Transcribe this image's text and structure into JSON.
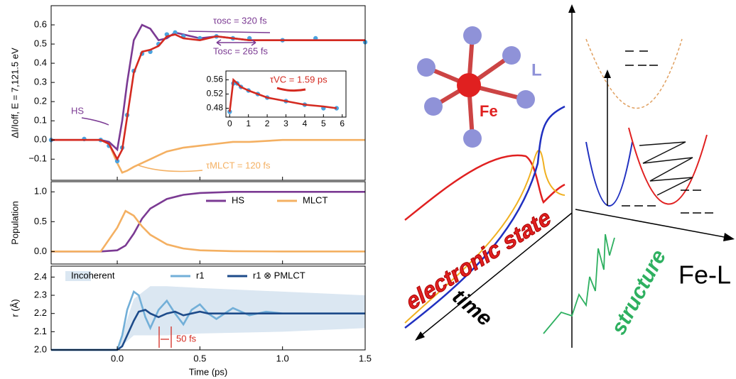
{
  "chart_data": [
    {
      "type": "line",
      "ylabel": "ΔI/Ioff, E = 7,121.5 eV",
      "xlim": [
        -0.4,
        1.5
      ],
      "ylim": [
        -0.21,
        0.7
      ],
      "yticks": [
        {
          "value": -0.1,
          "label": "−0.1"
        },
        {
          "value": 0,
          "label": "0.0"
        },
        0.1,
        0.2,
        0.3,
        0.4,
        0.5,
        0.6
      ],
      "x": [
        -0.4,
        -0.2,
        -0.1,
        -0.05,
        0,
        0.03,
        0.06,
        0.1,
        0.15,
        0.2,
        0.25,
        0.3,
        0.35,
        0.4,
        0.5,
        0.6,
        0.7,
        0.8,
        1.0,
        1.2,
        1.5
      ],
      "series": [
        {
          "name": "MLCT",
          "type": "line",
          "color": "#f4b062",
          "values": [
            0,
            0,
            0,
            -0.02,
            -0.12,
            -0.17,
            -0.16,
            -0.14,
            -0.12,
            -0.1,
            -0.08,
            -0.06,
            -0.05,
            -0.04,
            -0.03,
            -0.02,
            -0.01,
            -0.01,
            0,
            0,
            0
          ]
        },
        {
          "name": "HS",
          "type": "line",
          "color": "#7b3a93",
          "values": [
            0,
            0,
            0,
            -0.01,
            -0.05,
            0.1,
            0.3,
            0.52,
            0.6,
            0.58,
            0.52,
            0.53,
            0.56,
            0.55,
            0.53,
            0.54,
            0.53,
            0.52,
            0.52,
            0.52,
            0.52
          ]
        },
        {
          "name": "data",
          "type": "scatter",
          "color": "#4aa3df",
          "values": [
            0,
            0.005,
            0,
            -0.03,
            -0.11,
            -0.04,
            0.13,
            0.36,
            0.45,
            0.46,
            0.5,
            0.55,
            0.56,
            0.54,
            0.53,
            0.54,
            0.53,
            0.53,
            0.52,
            0.53,
            0.51
          ]
        },
        {
          "name": "fit",
          "type": "line",
          "color": "#d42a20",
          "values": [
            0,
            0,
            0,
            -0.02,
            -0.1,
            -0.05,
            0.12,
            0.35,
            0.46,
            0.47,
            0.49,
            0.54,
            0.55,
            0.53,
            0.52,
            0.54,
            0.53,
            0.52,
            0.52,
            0.52,
            0.52
          ]
        }
      ],
      "annotations": [
        {
          "text": "τosc = 320 fs",
          "color": "#7b3a93"
        },
        {
          "text": "Tosc = 265 fs",
          "color": "#7b3a93"
        },
        {
          "text": "HS",
          "color": "#7b3a93"
        },
        {
          "text": "τMLCT = 120 fs",
          "color": "#f4b062"
        }
      ],
      "inset": {
        "xlim": [
          -0.2,
          6.2
        ],
        "ylim": [
          0.455,
          0.585
        ],
        "xticks": [
          0,
          1,
          2,
          3,
          4,
          5,
          6
        ],
        "yticks": [
          0.48,
          0.52,
          0.56
        ],
        "x": [
          0,
          0.2,
          0.4,
          0.6,
          1,
          1.5,
          2,
          3,
          4,
          5,
          5.7
        ],
        "series": [
          {
            "name": "data",
            "type": "scatter",
            "color": "#4aa3df",
            "values": [
              0.47,
              0.55,
              0.55,
              0.54,
              0.53,
              0.52,
              0.51,
              0.5,
              0.49,
              0.48,
              0.48
            ]
          },
          {
            "name": "fit",
            "type": "line",
            "color": "#d42a20",
            "values": [
              0.47,
              0.56,
              0.55,
              0.54,
              0.53,
              0.52,
              0.51,
              0.5,
              0.49,
              0.485,
              0.48
            ]
          }
        ],
        "annotation": {
          "text": "τVC = 1.59 ps",
          "color": "#d42a20"
        }
      }
    },
    {
      "type": "line",
      "ylabel": "Population",
      "xlim": [
        -0.4,
        1.5
      ],
      "ylim": [
        -0.21,
        1.17
      ],
      "yticks": [
        {
          "value": 0,
          "label": "0.0"
        },
        0.5,
        {
          "value": 1,
          "label": "1.0"
        }
      ],
      "x": [
        -0.4,
        -0.1,
        0,
        0.05,
        0.1,
        0.15,
        0.2,
        0.3,
        0.4,
        0.5,
        0.7,
        1.0,
        1.5
      ],
      "series": [
        {
          "name": "HS",
          "type": "line",
          "color": "#7b3a93",
          "values": [
            0,
            0,
            0.02,
            0.1,
            0.3,
            0.55,
            0.72,
            0.88,
            0.95,
            0.98,
            1,
            1,
            1
          ]
        },
        {
          "name": "MLCT",
          "type": "line",
          "color": "#f4b062",
          "values": [
            0,
            0,
            0.4,
            0.68,
            0.6,
            0.42,
            0.28,
            0.12,
            0.05,
            0.02,
            0.005,
            0,
            0
          ]
        }
      ]
    },
    {
      "type": "line",
      "ylabel": "r (Å)",
      "xlabel": "Time (ps)",
      "xlim": [
        -0.4,
        1.5
      ],
      "ylim": [
        2.0,
        2.46
      ],
      "xticks": [
        {
          "value": 0,
          "label": "0.0"
        },
        0.5,
        {
          "value": 1,
          "label": "1.0"
        },
        1.5
      ],
      "yticks": [
        {
          "value": 2,
          "label": "2.0"
        },
        2.1,
        2.2,
        2.3,
        2.4
      ],
      "x": [
        -0.4,
        0,
        0.03,
        0.06,
        0.1,
        0.13,
        0.17,
        0.2,
        0.25,
        0.3,
        0.35,
        0.4,
        0.45,
        0.5,
        0.55,
        0.6,
        0.7,
        0.8,
        0.9,
        1.0,
        1.2,
        1.5
      ],
      "series": [
        {
          "name": "Incoherent",
          "type": "area",
          "color": "#dbe7f2",
          "x": [
            0,
            0.1,
            0.2,
            0.3,
            0.5,
            1.0,
            1.5
          ],
          "upper": [
            2.0,
            2.28,
            2.35,
            2.35,
            2.34,
            2.32,
            2.3
          ],
          "lower": [
            2.0,
            2.08,
            2.08,
            2.08,
            2.09,
            2.1,
            2.12
          ]
        },
        {
          "name": "r1",
          "type": "line",
          "color": "#72afd8",
          "values": [
            2.0,
            2.0,
            2.08,
            2.22,
            2.32,
            2.3,
            2.18,
            2.12,
            2.22,
            2.27,
            2.2,
            2.14,
            2.22,
            2.25,
            2.2,
            2.17,
            2.23,
            2.19,
            2.21,
            2.2,
            2.2,
            2.2
          ]
        },
        {
          "name": "r1 ⊗ PMLCT",
          "type": "line",
          "color": "#1d4b8a",
          "values": [
            2.0,
            2.0,
            2.02,
            2.08,
            2.16,
            2.21,
            2.22,
            2.2,
            2.18,
            2.2,
            2.21,
            2.19,
            2.2,
            2.21,
            2.2,
            2.2,
            2.2,
            2.2,
            2.2,
            2.2,
            2.2,
            2.2
          ]
        }
      ],
      "annotations": [
        {
          "text": "50 fs",
          "color": "#d42a20"
        }
      ]
    }
  ],
  "diagram": {
    "ligand": "L",
    "metal": "Fe",
    "electronic": "electronic state",
    "time": "time",
    "structure": "structure",
    "coordinate": "Fe-L"
  }
}
